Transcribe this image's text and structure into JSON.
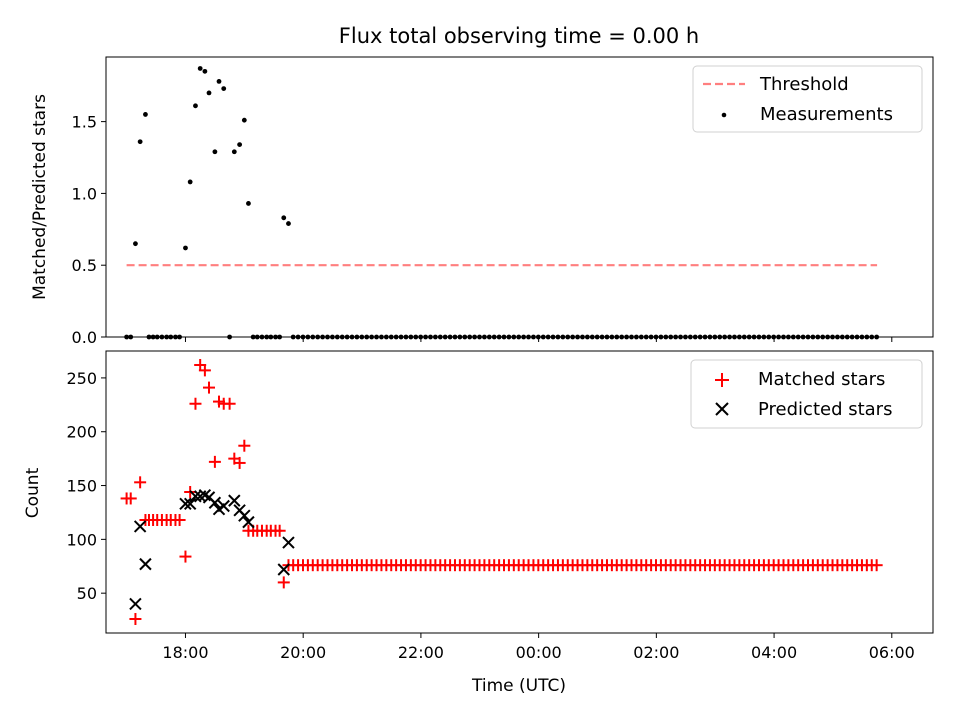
{
  "chart_data": [
    {
      "type": "scatter",
      "title": "Flux total observing time = 0.00 h",
      "xlabel": "",
      "ylabel": "Matched/Predicted stars",
      "ylim": [
        0,
        1.95
      ],
      "xlim": [
        16.65,
        30.7
      ],
      "yticks": [
        0.0,
        0.5,
        1.0,
        1.5
      ],
      "ytick_labels": [
        "0.0",
        "0.5",
        "1.0",
        "1.5"
      ],
      "legend": {
        "position": "top-right",
        "entries": [
          "Threshold",
          "Measurements"
        ]
      },
      "threshold": {
        "name": "Threshold",
        "value": 0.5,
        "x_range": [
          17.0,
          29.75
        ],
        "color": "#ff7f7f"
      },
      "series": [
        {
          "name": "Measurements",
          "color": "#000000",
          "points": [
            [
              17.0,
              0.0
            ],
            [
              17.07,
              0.0
            ],
            [
              17.15,
              0.65
            ],
            [
              17.23,
              1.36
            ],
            [
              17.32,
              1.55
            ],
            [
              17.38,
              0.0
            ],
            [
              17.45,
              0.0
            ],
            [
              17.52,
              0.0
            ],
            [
              17.6,
              0.0
            ],
            [
              17.68,
              0.0
            ],
            [
              17.75,
              0.0
            ],
            [
              17.83,
              0.0
            ],
            [
              17.9,
              0.0
            ],
            [
              18.0,
              0.62
            ],
            [
              18.08,
              1.08
            ],
            [
              18.17,
              1.61
            ],
            [
              18.25,
              1.87
            ],
            [
              18.33,
              1.85
            ],
            [
              18.4,
              1.7
            ],
            [
              18.5,
              1.29
            ],
            [
              18.57,
              1.78
            ],
            [
              18.65,
              1.73
            ],
            [
              18.75,
              0.0
            ],
            [
              18.83,
              1.29
            ],
            [
              18.92,
              1.34
            ],
            [
              19.0,
              1.51
            ],
            [
              19.07,
              0.93
            ],
            [
              19.15,
              0.0
            ],
            [
              19.22,
              0.0
            ],
            [
              19.3,
              0.0
            ],
            [
              19.38,
              0.0
            ],
            [
              19.45,
              0.0
            ],
            [
              19.53,
              0.0
            ],
            [
              19.6,
              0.0
            ],
            [
              19.67,
              0.83
            ],
            [
              19.75,
              0.79
            ]
          ],
          "zero_run": {
            "x_start": 19.83,
            "x_end": 29.75,
            "step": 0.0833,
            "y": 0.0
          }
        }
      ]
    },
    {
      "type": "scatter",
      "title": "",
      "xlabel": "Time (UTC)",
      "ylabel": "Count",
      "ylim": [
        13,
        275
      ],
      "xlim": [
        16.65,
        30.7
      ],
      "yticks": [
        50,
        100,
        150,
        200,
        250
      ],
      "ytick_labels": [
        "50",
        "100",
        "150",
        "200",
        "250"
      ],
      "xticks": [
        18,
        20,
        22,
        24,
        26,
        28,
        30
      ],
      "xtick_labels": [
        "18:00",
        "20:00",
        "22:00",
        "00:00",
        "02:00",
        "04:00",
        "06:00"
      ],
      "legend": {
        "position": "top-right",
        "entries": [
          "Matched stars",
          "Predicted stars"
        ]
      },
      "series": [
        {
          "name": "Matched stars",
          "marker": "+",
          "color": "#ff0000",
          "points": [
            [
              17.0,
              138
            ],
            [
              17.07,
              138
            ],
            [
              17.15,
              26
            ],
            [
              17.23,
              153
            ],
            [
              17.32,
              118
            ],
            [
              17.38,
              118
            ],
            [
              17.45,
              118
            ],
            [
              17.52,
              118
            ],
            [
              17.6,
              118
            ],
            [
              17.68,
              118
            ],
            [
              17.75,
              118
            ],
            [
              17.83,
              118
            ],
            [
              17.9,
              118
            ],
            [
              18.0,
              84
            ],
            [
              18.08,
              144
            ],
            [
              18.17,
              226
            ],
            [
              18.25,
              262
            ],
            [
              18.33,
              257
            ],
            [
              18.4,
              241
            ],
            [
              18.5,
              172
            ],
            [
              18.57,
              228
            ],
            [
              18.65,
              226
            ],
            [
              18.75,
              226
            ],
            [
              18.83,
              175
            ],
            [
              18.92,
              171
            ],
            [
              19.0,
              187
            ],
            [
              19.07,
              108
            ],
            [
              19.15,
              108
            ],
            [
              19.22,
              108
            ],
            [
              19.3,
              108
            ],
            [
              19.38,
              108
            ],
            [
              19.45,
              108
            ],
            [
              19.53,
              108
            ],
            [
              19.6,
              108
            ],
            [
              19.67,
              60
            ],
            [
              19.75,
              76
            ]
          ],
          "tail_run": {
            "x_start": 19.83,
            "x_end": 29.75,
            "step": 0.0833,
            "y": 76
          }
        },
        {
          "name": "Predicted stars",
          "marker": "x",
          "color": "#000000",
          "points": [
            [
              17.15,
              40
            ],
            [
              17.23,
              112
            ],
            [
              17.32,
              77
            ],
            [
              18.0,
              133
            ],
            [
              18.08,
              133
            ],
            [
              18.17,
              140
            ],
            [
              18.25,
              140
            ],
            [
              18.33,
              141
            ],
            [
              18.4,
              139
            ],
            [
              18.5,
              134
            ],
            [
              18.57,
              128
            ],
            [
              18.65,
              131
            ],
            [
              18.83,
              136
            ],
            [
              18.92,
              127
            ],
            [
              19.0,
              122
            ],
            [
              19.07,
              116
            ],
            [
              19.67,
              72
            ],
            [
              19.75,
              97
            ]
          ]
        }
      ]
    }
  ]
}
